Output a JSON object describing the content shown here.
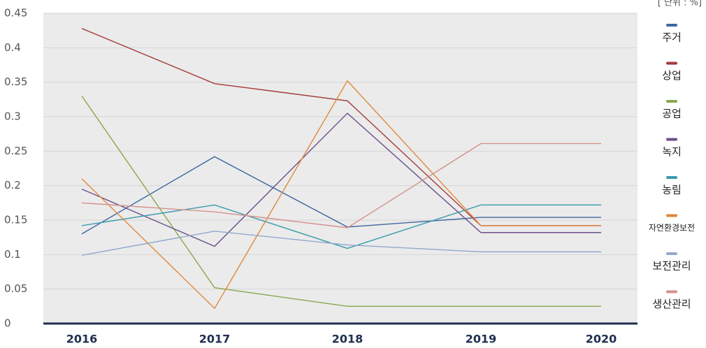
{
  "chart_data": {
    "type": "line",
    "unit_label": "[ 단위 : %]",
    "categories": [
      "2016",
      "2017",
      "2018",
      "2019",
      "2020"
    ],
    "series": [
      {
        "name": "주거",
        "color": "#3f66a0",
        "values": [
          0.13,
          0.242,
          0.14,
          0.154,
          0.154
        ]
      },
      {
        "name": "상업",
        "color": "#a33a3a",
        "values": [
          0.428,
          0.348,
          0.323,
          0.142,
          0.142
        ]
      },
      {
        "name": "공업",
        "color": "#88a84c",
        "values": [
          0.33,
          0.052,
          0.025,
          0.025,
          0.025
        ]
      },
      {
        "name": "녹지",
        "color": "#6a4f8a",
        "values": [
          0.195,
          0.112,
          0.305,
          0.132,
          0.132
        ]
      },
      {
        "name": "농림",
        "color": "#3a9aae",
        "values": [
          0.142,
          0.172,
          0.109,
          0.172,
          0.172
        ]
      },
      {
        "name": "자연환경보전",
        "color": "#e0883a",
        "values": [
          0.21,
          0.022,
          0.352,
          0.142,
          0.142
        ]
      },
      {
        "name": "보전관리",
        "color": "#92a8cc",
        "values": [
          0.099,
          0.134,
          0.114,
          0.104,
          0.104
        ]
      },
      {
        "name": "생산관리",
        "color": "#d4918a",
        "values": [
          0.175,
          0.162,
          0.139,
          0.261,
          0.261
        ]
      }
    ],
    "ylim": [
      0,
      0.45
    ],
    "yticks": [
      0,
      0.05,
      0.1,
      0.15,
      0.2,
      0.25,
      0.3,
      0.35,
      0.4,
      0.45
    ],
    "grid": true,
    "legend": "right"
  }
}
